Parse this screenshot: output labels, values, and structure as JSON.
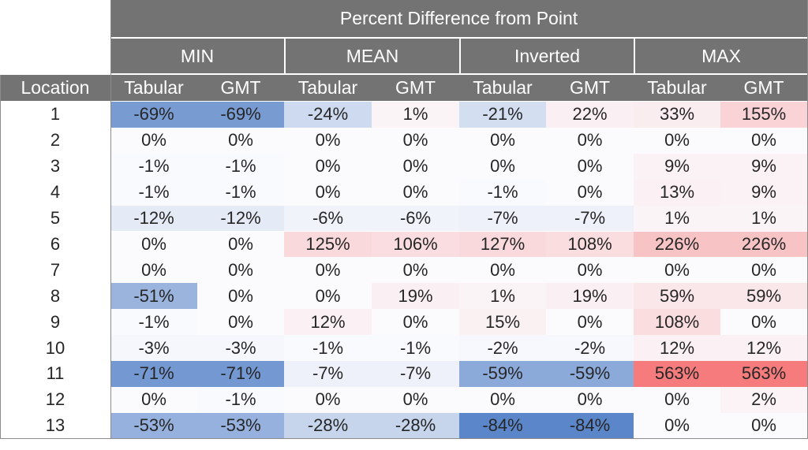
{
  "title": "Percent Difference from Point",
  "groups": [
    "MIN",
    "MEAN",
    "Inverted",
    "MAX"
  ],
  "location_header": "Location",
  "sub_headers": [
    "Tabular",
    "GMT",
    "Tabular",
    "GMT",
    "Tabular",
    "GMT",
    "Tabular",
    "GMT"
  ],
  "colors": {
    "header_bg": "#737373",
    "header_text": "#ffffff",
    "negative_max": "#5b86c9",
    "positive_max": "#f46d6d",
    "neutral": "#fbfbfe"
  },
  "rows": [
    {
      "location": "1",
      "cells": [
        "-69%",
        "-69%",
        "-24%",
        "1%",
        "-21%",
        "22%",
        "33%",
        "155%"
      ]
    },
    {
      "location": "2",
      "cells": [
        "0%",
        "0%",
        "0%",
        "0%",
        "0%",
        "0%",
        "0%",
        "0%"
      ]
    },
    {
      "location": "3",
      "cells": [
        "-1%",
        "-1%",
        "0%",
        "0%",
        "0%",
        "0%",
        "9%",
        "9%"
      ]
    },
    {
      "location": "4",
      "cells": [
        "-1%",
        "-1%",
        "0%",
        "0%",
        "-1%",
        "0%",
        "13%",
        "9%"
      ]
    },
    {
      "location": "5",
      "cells": [
        "-12%",
        "-12%",
        "-6%",
        "-6%",
        "-7%",
        "-7%",
        "1%",
        "1%"
      ]
    },
    {
      "location": "6",
      "cells": [
        "0%",
        "0%",
        "125%",
        "106%",
        "127%",
        "108%",
        "226%",
        "226%"
      ]
    },
    {
      "location": "7",
      "cells": [
        "0%",
        "0%",
        "0%",
        "0%",
        "0%",
        "0%",
        "0%",
        "0%"
      ]
    },
    {
      "location": "8",
      "cells": [
        "-51%",
        "0%",
        "0%",
        "19%",
        "1%",
        "19%",
        "59%",
        "59%"
      ]
    },
    {
      "location": "9",
      "cells": [
        "-1%",
        "0%",
        "12%",
        "0%",
        "15%",
        "0%",
        "108%",
        "0%"
      ]
    },
    {
      "location": "10",
      "cells": [
        "-3%",
        "-3%",
        "-1%",
        "-1%",
        "-2%",
        "-2%",
        "12%",
        "12%"
      ]
    },
    {
      "location": "11",
      "cells": [
        "-71%",
        "-71%",
        "-7%",
        "-7%",
        "-59%",
        "-59%",
        "563%",
        "563%"
      ]
    },
    {
      "location": "12",
      "cells": [
        "0%",
        "-1%",
        "0%",
        "0%",
        "0%",
        "0%",
        "0%",
        "2%"
      ]
    },
    {
      "location": "13",
      "cells": [
        "-53%",
        "-53%",
        "-28%",
        "-28%",
        "-84%",
        "-84%",
        "0%",
        "0%"
      ]
    }
  ]
}
